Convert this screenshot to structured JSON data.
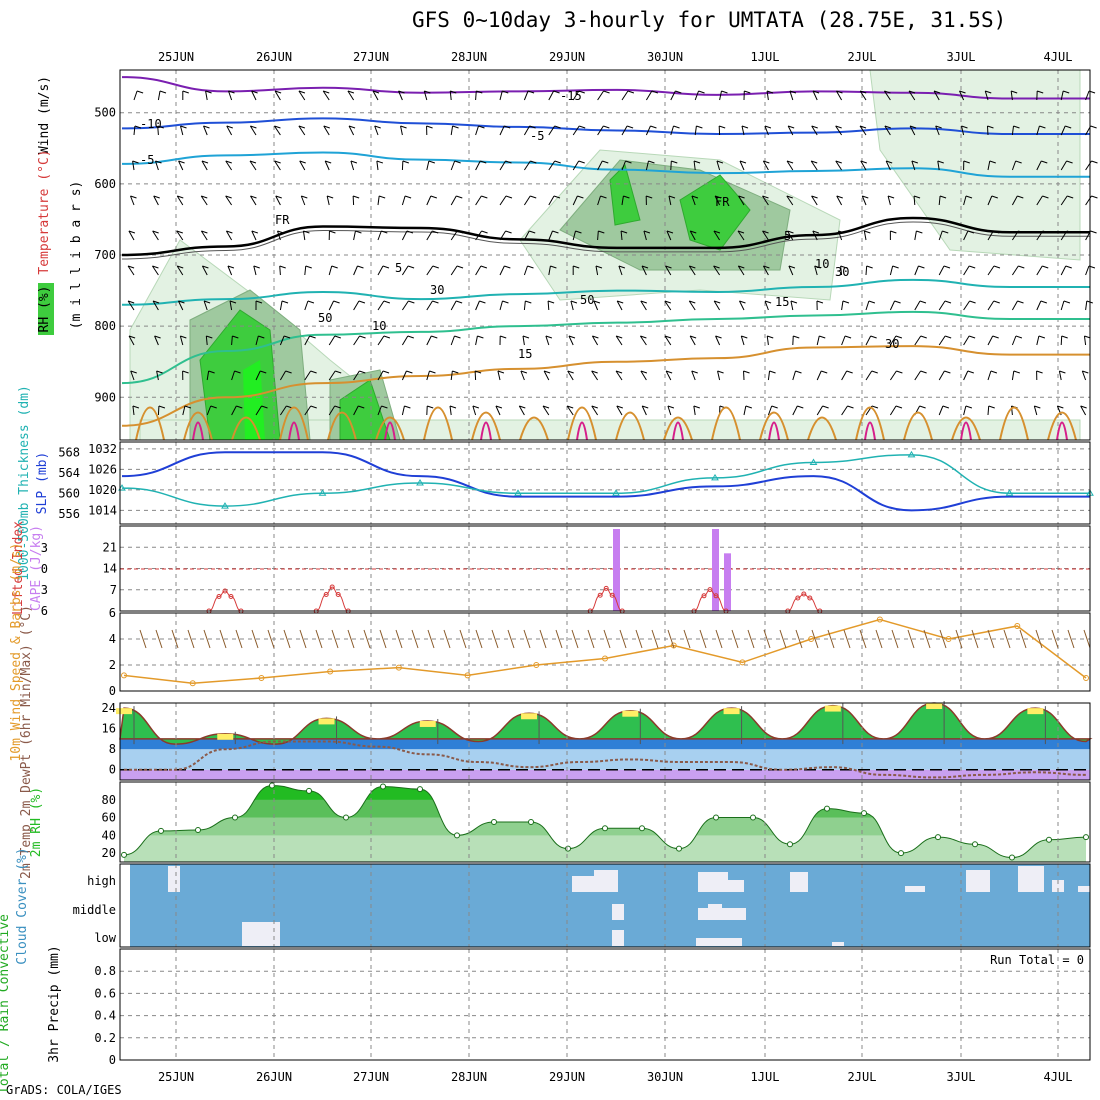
{
  "title": "GFS 0~10day 3-hourly for UMTATA (28.75E, 31.5S)",
  "credit": "GrADS: COLA/IGES",
  "colors": {
    "grid": "#888888",
    "temp_freezing": "#000000",
    "temp_cold": "#1f4fd6",
    "temp_mid": "#1fa3d6",
    "temp_warm": "#2fbf8f",
    "temp_hot": "#d6902f",
    "rh_light": "#e3f2e3",
    "rh_mid": "#9fc99f",
    "rh_dark": "#3ecc3e",
    "slp": "#1f3fd6",
    "thickness": "#20b2b2",
    "cape": "#c77ef0",
    "lifted": "#d63a3a",
    "wind10m": "#e39a2a",
    "cloud_bg": "#6aaad6",
    "cloud_fill": "#eeeef6",
    "rh2m": "#22bb22",
    "dewpt": "#8a5a4a"
  },
  "chart_data": [
    {
      "type": "heatmap",
      "panel": "upper-air",
      "x": [
        "25JUN",
        "26JUN",
        "27JUN",
        "28JUN",
        "29JUN",
        "30JUN",
        "1JUL",
        "2JUL",
        "3JUL",
        "4JUL"
      ],
      "ylabel": "milli bars",
      "ylabel_parts": [
        "Wind (m/s)",
        "Temperature (°C)",
        "RH (%)"
      ],
      "ylim": [
        960,
        440
      ],
      "yticks": [
        500,
        600,
        700,
        800,
        900
      ],
      "temperature_contours": [
        {
          "label": "-15",
          "values": [
            450,
            470,
            465,
            472,
            470,
            468,
            475,
            470,
            472,
            480
          ]
        },
        {
          "label": "-10",
          "values": [
            522,
            514,
            508,
            515,
            520,
            525,
            530,
            528,
            522,
            530
          ]
        },
        {
          "label": "-5",
          "values": [
            572,
            560,
            556,
            566,
            570,
            580,
            585,
            582,
            578,
            590
          ]
        },
        {
          "label": "FR",
          "values": [
            700,
            688,
            660,
            662,
            678,
            690,
            690,
            672,
            648,
            668
          ]
        },
        {
          "label": "5",
          "values": [
            770,
            762,
            752,
            762,
            755,
            750,
            752,
            745,
            735,
            745
          ]
        },
        {
          "label": "10",
          "values": [
            880,
            835,
            812,
            808,
            800,
            795,
            790,
            785,
            780,
            790
          ]
        },
        {
          "label": "15",
          "values": [
            940,
            900,
            880,
            870,
            860,
            850,
            845,
            830,
            828,
            840
          ]
        }
      ],
      "contour_labels": [
        "-15",
        "-10",
        "-5",
        "-5",
        "FR",
        "FR",
        "5",
        "5",
        "10",
        "10",
        "15",
        "15",
        "30",
        "30",
        "50",
        "50",
        "30"
      ]
    },
    {
      "type": "line",
      "panel": "slp-thickness",
      "x": [
        "25JUN",
        "26JUN",
        "27JUN",
        "28JUN",
        "29JUN",
        "30JUN",
        "1JUL",
        "2JUL",
        "3JUL",
        "4JUL"
      ],
      "ylabel": "SLP (mb)",
      "ylabel2": "1000-500mb Thickness (dm)",
      "ylim": [
        1010,
        1034
      ],
      "yticks": [
        1014,
        1020,
        1026,
        1032
      ],
      "yticks2": [
        556,
        560,
        564,
        568
      ],
      "series": [
        {
          "name": "SLP (mb)",
          "values": [
            1024,
            1031,
            1031,
            1024,
            1018,
            1018,
            1021,
            1024,
            1014,
            1018
          ]
        },
        {
          "name": "1000-500mb Thickness (dm)",
          "values": [
            561,
            557.5,
            560,
            562,
            560,
            560,
            563,
            566,
            567.5,
            560
          ]
        }
      ]
    },
    {
      "type": "bar",
      "panel": "cape-li",
      "ylabel": "CAPE (J/kg)",
      "ylabel2": "Lifted Index",
      "ylim": [
        0,
        28
      ],
      "yticks": [
        7,
        14,
        21
      ],
      "yticks2": [
        6,
        3,
        0,
        -3
      ],
      "cape_bars": [
        {
          "day": 4.5,
          "value": 27
        },
        {
          "day": 5.5,
          "value": 27
        },
        {
          "day": 5.62,
          "value": 19
        }
      ],
      "lifted_index": [
        {
          "day": 0.5,
          "value": 2.5
        },
        {
          "day": 1.6,
          "value": 4.5
        },
        {
          "day": 4.4,
          "value": 3.8
        },
        {
          "day": 5.45,
          "value": 3.2
        },
        {
          "day": 6.4,
          "value": 1.0
        }
      ]
    },
    {
      "type": "line",
      "panel": "wind-10m",
      "ylabel": "10m Wind Speed & Barbs (m/s)",
      "ylim": [
        0,
        6
      ],
      "yticks": [
        0,
        2,
        4,
        6
      ],
      "series": [
        {
          "name": "10m Wind Speed",
          "values": [
            1.2,
            0.6,
            1.0,
            1.5,
            1.8,
            1.2,
            2.0,
            2.5,
            3.5,
            2.2,
            4.0,
            5.5,
            4.0,
            5.0,
            1.0
          ]
        }
      ]
    },
    {
      "type": "area",
      "panel": "temp-2m",
      "ylabel": "2m Temp 2m DewPt (6hr Min/Max) (°C)",
      "ylim": [
        -4,
        26
      ],
      "yticks": [
        0,
        8,
        16,
        24
      ],
      "series": [
        {
          "name": "2m Temp",
          "values": [
            24,
            10,
            14,
            10,
            20,
            12,
            19,
            11,
            22,
            12,
            23,
            12,
            24,
            12,
            25,
            12,
            26,
            12,
            24,
            11
          ]
        },
        {
          "name": "2m DewPt",
          "values": [
            0,
            0,
            8,
            11,
            11,
            9,
            6,
            3,
            1,
            3,
            4,
            3,
            3,
            0,
            1,
            -2,
            -3,
            -2,
            -1,
            -2
          ]
        }
      ]
    },
    {
      "type": "area",
      "panel": "rh-2m",
      "ylabel": "2m RH (%)",
      "ylim": [
        10,
        100
      ],
      "yticks": [
        20,
        40,
        60,
        80
      ],
      "series": [
        {
          "name": "2m RH",
          "values": [
            18,
            45,
            46,
            60,
            96,
            90,
            60,
            95,
            92,
            40,
            55,
            55,
            25,
            48,
            48,
            25,
            60,
            60,
            30,
            70,
            65,
            20,
            38,
            30,
            15,
            35,
            38
          ]
        }
      ]
    },
    {
      "type": "bar",
      "panel": "cloud-cover",
      "ylabel": "Cloud Cover (%)",
      "yticks": [
        "high",
        "middle",
        "low"
      ]
    },
    {
      "type": "bar",
      "panel": "precip",
      "ylabel": "3hr Precip (mm)",
      "ylabel2": "Total / Rain Convective",
      "ylim": [
        0,
        1.0
      ],
      "yticks": [
        0,
        0.2,
        0.4,
        0.6,
        0.8
      ],
      "annotation": "Run Total = 0"
    }
  ],
  "panel_labels": {
    "upper_ylabel": "(m i l l i b a r s)",
    "upper_wind": "Wind (m/s)",
    "upper_temp": "Temperature (°C)",
    "upper_rh": "RH (%)",
    "slp_label": "SLP (mb)",
    "thk_label": "1000-500mb Thickness (dm)",
    "cape_label": "CAPE (J/kg)",
    "li_label": "Lifted Index",
    "wind_label": "10m Wind Speed & Barbs (m/s)",
    "temp_label": "2m Temp 2m DewPt (6hr Min/Max) (°C)",
    "rh_label": "2m RH (%)",
    "cloud_label": "Cloud Cover (%)",
    "precip_label": "3hr Precip (mm)",
    "precip_legend": "Total / Rain Convective",
    "run_total": "Run Total = 0"
  }
}
